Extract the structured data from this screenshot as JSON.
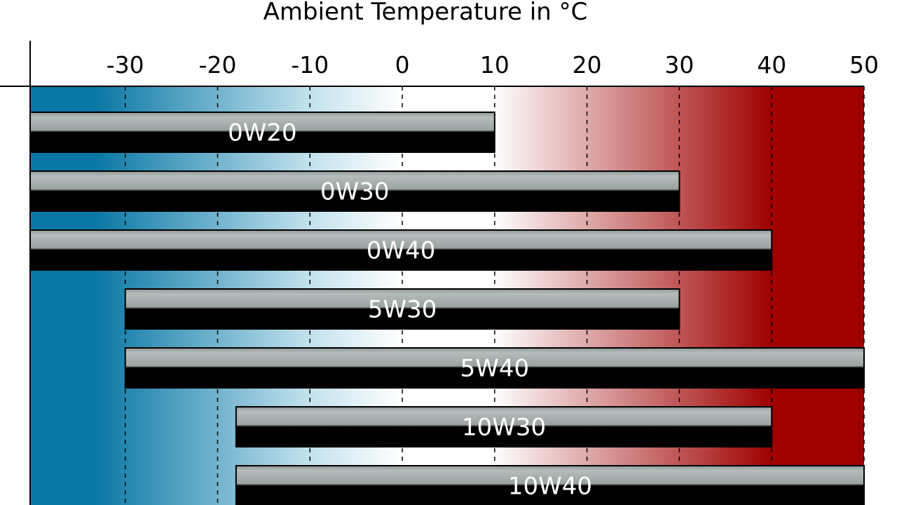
{
  "chart_data": {
    "type": "bar",
    "orientation": "horizontal",
    "title": "Ambient Temperature in °C",
    "xlabel": "",
    "ylabel": "",
    "x_ticks": [
      -30,
      -20,
      -10,
      0,
      10,
      20,
      30,
      40,
      50
    ],
    "xlim": [
      -40.3,
      50
    ],
    "grid": true,
    "categories": [
      "0W20",
      "0W30",
      "0W40",
      "5W30",
      "5W40",
      "10W30",
      "10W40"
    ],
    "ranges": [
      {
        "label": "0W20",
        "min": -40.3,
        "max": 10
      },
      {
        "label": "0W30",
        "min": -40.3,
        "max": 30
      },
      {
        "label": "0W40",
        "min": -40.3,
        "max": 40
      },
      {
        "label": "5W30",
        "min": -30,
        "max": 30
      },
      {
        "label": "5W40",
        "min": -30,
        "max": 50
      },
      {
        "label": "10W30",
        "min": -18,
        "max": 40
      },
      {
        "label": "10W40",
        "min": -18,
        "max": 50
      }
    ],
    "colors": {
      "cold": "#0a78a6",
      "neutral": "#ffffff",
      "hot": "#9e0000",
      "bar_top": "#9aa2a2",
      "bar_bottom": "#000000",
      "label": "#ffffff"
    }
  }
}
